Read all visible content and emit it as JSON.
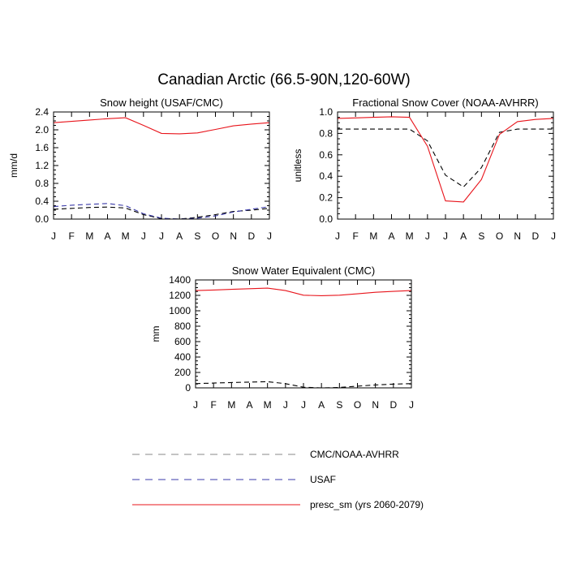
{
  "figure": {
    "title": "Canadian Arctic (66.5-90N,120-60W)"
  },
  "colors": {
    "obs_black": "#000000",
    "usaf_blue": "#3a3aa8",
    "model_red": "#e8141b",
    "axis": "#000000"
  },
  "legend": {
    "items": [
      {
        "label": "CMC/NOAA-AVHRR",
        "color": "#8a8a8a",
        "style": "dashed"
      },
      {
        "label": "USAF",
        "color": "#3a3aa8",
        "style": "dashed"
      },
      {
        "label": "presc_sm (yrs 2060-2079)",
        "color": "#e8141b",
        "style": "solid"
      }
    ]
  },
  "chart_data": [
    {
      "type": "line",
      "title": "Snow height (USAF/CMC)",
      "xlabel": "",
      "ylabel": "mm/d",
      "categories": [
        "J",
        "F",
        "M",
        "A",
        "M",
        "J",
        "J",
        "A",
        "S",
        "O",
        "N",
        "D",
        "J"
      ],
      "yticks": [
        "0.0",
        "0.4",
        "0.8",
        "1.2",
        "1.6",
        "2.0",
        "2.4"
      ],
      "ylim": [
        0,
        2.4
      ],
      "series": [
        {
          "name": "CMC/NOAA-AVHRR",
          "color": "#000000",
          "dash": true,
          "values": [
            0.22,
            0.24,
            0.26,
            0.27,
            0.25,
            0.1,
            0.01,
            0.0,
            0.04,
            0.1,
            0.17,
            0.2,
            0.24
          ]
        },
        {
          "name": "USAF",
          "color": "#3a3aa8",
          "dash": true,
          "values": [
            0.28,
            0.31,
            0.33,
            0.35,
            0.3,
            0.12,
            0.02,
            0.0,
            0.02,
            0.07,
            0.16,
            0.22,
            0.28
          ]
        },
        {
          "name": "presc_sm (yrs 2060-2079)",
          "color": "#e8141b",
          "dash": false,
          "values": [
            2.16,
            2.19,
            2.22,
            2.25,
            2.27,
            2.1,
            1.92,
            1.91,
            1.93,
            2.01,
            2.09,
            2.13,
            2.16
          ]
        }
      ]
    },
    {
      "type": "line",
      "title": "Fractional Snow Cover (NOAA-AVHRR)",
      "xlabel": "",
      "ylabel": "unitless",
      "categories": [
        "J",
        "F",
        "M",
        "A",
        "M",
        "J",
        "J",
        "A",
        "S",
        "O",
        "N",
        "D",
        "J"
      ],
      "yticks": [
        "0.0",
        "0.2",
        "0.4",
        "0.6",
        "0.8",
        "1.0"
      ],
      "ylim": [
        0,
        1.0
      ],
      "series": [
        {
          "name": "CMC/NOAA-AVHRR",
          "color": "#000000",
          "dash": true,
          "values": [
            0.84,
            0.84,
            0.84,
            0.84,
            0.84,
            0.73,
            0.41,
            0.3,
            0.48,
            0.81,
            0.84,
            0.84,
            0.84
          ]
        },
        {
          "name": "presc_sm (yrs 2060-2079)",
          "color": "#e8141b",
          "dash": false,
          "values": [
            0.94,
            0.945,
            0.95,
            0.955,
            0.95,
            0.68,
            0.17,
            0.16,
            0.37,
            0.79,
            0.91,
            0.93,
            0.94
          ]
        }
      ]
    },
    {
      "type": "line",
      "title": "Snow Water Equivalent (CMC)",
      "xlabel": "",
      "ylabel": "mm",
      "categories": [
        "J",
        "F",
        "M",
        "A",
        "M",
        "J",
        "J",
        "A",
        "S",
        "O",
        "N",
        "D",
        "J"
      ],
      "yticks": [
        "0",
        "200",
        "400",
        "600",
        "800",
        "1000",
        "1200",
        "1400"
      ],
      "ylim": [
        0,
        1400
      ],
      "series": [
        {
          "name": "CMC/NOAA-AVHRR",
          "color": "#000000",
          "dash": true,
          "values": [
            55,
            62,
            70,
            75,
            80,
            55,
            8,
            0,
            5,
            22,
            38,
            48,
            55
          ]
        },
        {
          "name": "presc_sm (yrs 2060-2079)",
          "color": "#e8141b",
          "dash": false,
          "values": [
            1262,
            1270,
            1278,
            1286,
            1294,
            1262,
            1202,
            1196,
            1202,
            1220,
            1240,
            1252,
            1262
          ]
        }
      ]
    }
  ]
}
